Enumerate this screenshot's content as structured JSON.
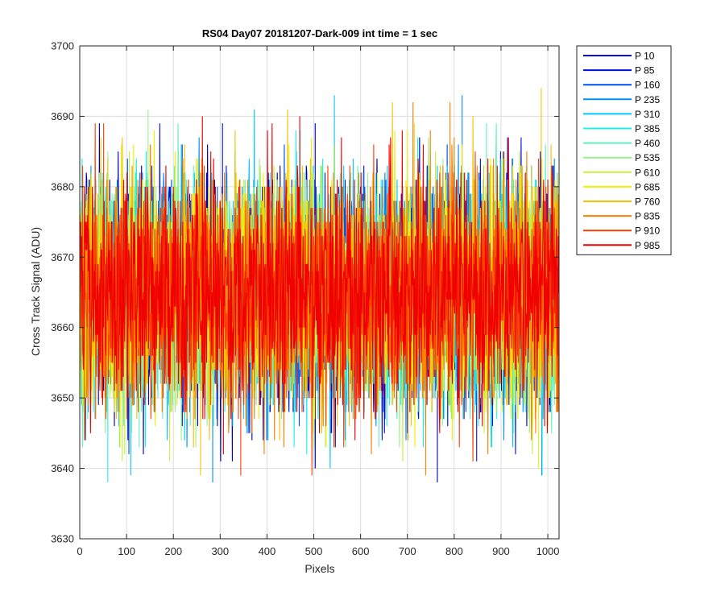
{
  "chart_data": {
    "type": "line",
    "title": "RS04 Day07 20181207-Dark-009 int time = 1 sec",
    "xlabel": "Pixels",
    "ylabel": "Cross Track Signal (ADU)",
    "xlim": [
      0,
      1024
    ],
    "ylim": [
      3630,
      3700
    ],
    "xticks": [
      0,
      100,
      200,
      300,
      400,
      500,
      600,
      700,
      800,
      900,
      1000
    ],
    "yticks": [
      3630,
      3640,
      3650,
      3660,
      3670,
      3680,
      3690,
      3700
    ],
    "grid": true,
    "legend_position": "outside-top-right",
    "noise_band": {
      "mean": 3665,
      "typical_min": 3650,
      "typical_max": 3683
    },
    "series": [
      {
        "name": "P 10",
        "color": "#0000b0",
        "max": 3689,
        "min": 3638
      },
      {
        "name": "P 85",
        "color": "#0010dc",
        "max": 3689,
        "min": 3641
      },
      {
        "name": "P 160",
        "color": "#0050e8",
        "max": 3686,
        "min": 3639
      },
      {
        "name": "P 235",
        "color": "#0090f0",
        "max": 3693,
        "min": 3638
      },
      {
        "name": "P 310",
        "color": "#00c8f8",
        "max": 3693,
        "min": 3639
      },
      {
        "name": "P 385",
        "color": "#20f0e8",
        "max": 3688,
        "min": 3638
      },
      {
        "name": "P 460",
        "color": "#60f0c0",
        "max": 3689,
        "min": 3643
      },
      {
        "name": "P 535",
        "color": "#98f090",
        "max": 3691,
        "min": 3643
      },
      {
        "name": "P 610",
        "color": "#c8f040",
        "max": 3689,
        "min": 3641
      },
      {
        "name": "P 685",
        "color": "#f0f000",
        "max": 3688,
        "min": 3640
      },
      {
        "name": "P 760",
        "color": "#f8c000",
        "max": 3694,
        "min": 3639
      },
      {
        "name": "P 835",
        "color": "#f88000",
        "max": 3692,
        "min": 3639
      },
      {
        "name": "P 910",
        "color": "#f84000",
        "max": 3689,
        "min": 3639
      },
      {
        "name": "P 985",
        "color": "#f00000",
        "max": 3690,
        "min": 3642
      }
    ]
  }
}
